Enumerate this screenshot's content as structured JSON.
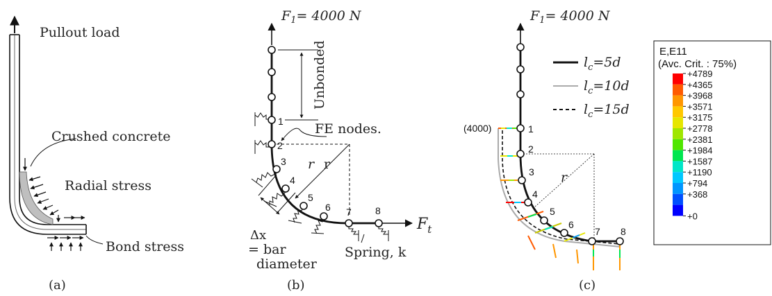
{
  "panel_a": {
    "caption": "(a)",
    "pullout_load": "Pullout load",
    "crushed_concrete": "Crushed concrete",
    "radial_stress": "Radial stress",
    "bond_stress": "Bond stress"
  },
  "panel_b": {
    "caption": "(b)",
    "force_top": "F",
    "force_top_sub": "1",
    "force_top_val": "= 4000 N",
    "unbonded": "Unbonded",
    "fe_nodes": "FE nodes.",
    "r1": "r",
    "r2": "r",
    "delta_x": "Δx",
    "bar_line1": "= bar",
    "bar_line2": "diameter",
    "spring": "Spring, k",
    "force_t": "F",
    "force_t_sub": "t",
    "nodes": [
      "1",
      "2",
      "3",
      "4",
      "5",
      "6",
      "7",
      "8"
    ]
  },
  "panel_c": {
    "caption": "(c)",
    "force_top": "F",
    "force_top_sub": "1",
    "force_top_val": "= 4000 N",
    "load_label": "(4000)",
    "r_label": "r",
    "nodes": [
      "1",
      "2",
      "3",
      "4",
      "5",
      "6",
      "7",
      "8"
    ],
    "line_legend": [
      {
        "l": "l",
        "sub": "c",
        "val": "=5d",
        "style": "solid-black"
      },
      {
        "l": "l",
        "sub": "c",
        "val": "=10d",
        "style": "solid-gray"
      },
      {
        "l": "l",
        "sub": "c",
        "val": "=15d",
        "style": "dashed"
      }
    ]
  },
  "color_legend": {
    "title1": "E,E11",
    "title2": "(Avc. Crit. : 75%)",
    "levels": [
      "+4789",
      "+4365",
      "+3968",
      "+3571",
      "+3175",
      "+2778",
      "+2381",
      "+1984",
      "+1587",
      "+1190",
      "+794",
      "+368",
      "+0"
    ],
    "colors": [
      "#ff0000",
      "#ff5a00",
      "#ff9600",
      "#ffc800",
      "#e6e600",
      "#a0e600",
      "#50e600",
      "#00e650",
      "#00e6c8",
      "#00c8ff",
      "#0096ff",
      "#0050ff",
      "#0000ff"
    ]
  }
}
